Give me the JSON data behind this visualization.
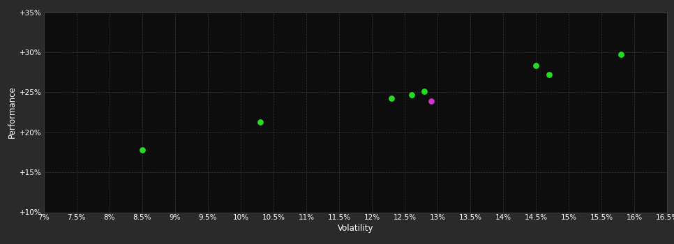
{
  "background_color": "#2a2a2a",
  "plot_bg_color": "#0d0d0d",
  "grid_color": "#444444",
  "text_color": "#ffffff",
  "xlabel": "Volatility",
  "ylabel": "Performance",
  "xlim": [
    0.07,
    0.165
  ],
  "ylim": [
    0.1,
    0.35
  ],
  "xticks": [
    0.07,
    0.075,
    0.08,
    0.085,
    0.09,
    0.095,
    0.1,
    0.105,
    0.11,
    0.115,
    0.12,
    0.125,
    0.13,
    0.135,
    0.14,
    0.145,
    0.15,
    0.155,
    0.16,
    0.165
  ],
  "yticks": [
    0.1,
    0.15,
    0.2,
    0.25,
    0.3,
    0.35
  ],
  "xtick_labels": [
    "7%",
    "7.5%",
    "8%",
    "8.5%",
    "9%",
    "9.5%",
    "10%",
    "10.5%",
    "11%",
    "11.5%",
    "12%",
    "12.5%",
    "13%",
    "13.5%",
    "14%",
    "14.5%",
    "15%",
    "15.5%",
    "16%",
    "16.5%"
  ],
  "ytick_labels": [
    "+10%",
    "+15%",
    "+20%",
    "+25%",
    "+30%",
    "+35%"
  ],
  "green_points": [
    [
      0.085,
      0.178
    ],
    [
      0.103,
      0.213
    ],
    [
      0.123,
      0.242
    ],
    [
      0.126,
      0.247
    ],
    [
      0.128,
      0.251
    ],
    [
      0.145,
      0.283
    ],
    [
      0.147,
      0.272
    ],
    [
      0.158,
      0.297
    ]
  ],
  "magenta_points": [
    [
      0.129,
      0.239
    ]
  ],
  "green_color": "#22dd22",
  "magenta_color": "#cc33cc",
  "marker_size": 28,
  "font_size_ticks": 7.5,
  "font_size_labels": 8.5
}
